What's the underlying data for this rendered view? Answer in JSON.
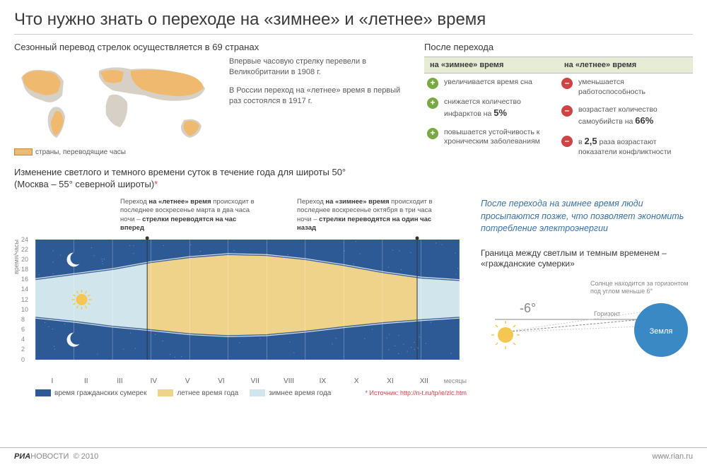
{
  "title": "Что нужно знать о переходе на «зимнее» и «летнее» время",
  "map": {
    "subtitle": "Сезонный перевод стрелок осуществляется в 69 странах",
    "legend": "страны, переводящие часы",
    "fact1": "Впервые часовую стрелку перевели в Великобритании в 1908 г.",
    "fact2": "В России переход на «летнее» время в первый раз состоялся в 1917 г.",
    "land_color": "#d6d0c6",
    "dst_color": "#f0b970"
  },
  "after": {
    "title": "После перехода",
    "winter_header": "на «зимнее» время",
    "summer_header": "на «летнее» время",
    "winter_items": [
      {
        "icon": "plus",
        "text": "увеличивается время сна"
      },
      {
        "icon": "plus",
        "text": "снижается количество инфарктов на",
        "big": "5%"
      },
      {
        "icon": "plus",
        "text": "повышается устойчивость к хроническим заболеваниям"
      }
    ],
    "summer_items": [
      {
        "icon": "minus",
        "text": "уменьшается работоспособность"
      },
      {
        "icon": "minus",
        "text": "возрастает количество самоубийств на",
        "big": "66%"
      },
      {
        "icon": "minus",
        "pre": "в",
        "big": "2,5",
        "text": "раза возрастают показатели конфликтности"
      }
    ]
  },
  "chart": {
    "title_line1": "Изменение светлого и темного времени суток в течение года для широты 50°",
    "title_line2": "(Москва – 55° северной широты)",
    "asterisk": "*",
    "note_left": "Переход <b>на «летнее» время</b> происходит в последнее воскресенье марта в два часа ночи – <b>стрелки переводятся на час вперед</b>",
    "note_right": "Переход <b>на «зимнее» время</b> происходит в последнее воскресенье октября в три часа ночи – <b>стрелки переводятся на один час назад</b>",
    "y_label": "время/часы",
    "y_ticks": [
      0,
      2,
      4,
      6,
      8,
      10,
      12,
      14,
      16,
      18,
      20,
      22,
      24
    ],
    "x_ticks": [
      "I",
      "II",
      "III",
      "IV",
      "V",
      "VI",
      "VII",
      "VIII",
      "IX",
      "X",
      "XI",
      "XII"
    ],
    "x_label": "месяцы",
    "colors": {
      "twilight": "#2d5a94",
      "summer_day": "#f0d38a",
      "winter_day": "#d0e5ec",
      "grid": "#a0a0a0"
    },
    "sunrise": [
      8.3,
      7.5,
      6.5,
      5.8,
      5.0,
      4.6,
      4.8,
      5.5,
      6.4,
      7.2,
      7.8,
      8.3
    ],
    "sunset": [
      16.2,
      17.2,
      18.2,
      19.6,
      20.6,
      21.2,
      21.0,
      20.2,
      19.0,
      17.6,
      16.5,
      16.0
    ],
    "dst_start_month": 3.9,
    "dst_end_month": 10.9,
    "legend": {
      "twilight": "время гражданских сумерек",
      "summer": "летнее время года",
      "winter": "зимнее время года",
      "source": "* Источник: http://n-t.ru/tp/ie/zlc.htm"
    }
  },
  "right": {
    "blue_note": "После перехода на зимнее время люди просыпаются позже, что позволяет экономить потребление электроэнергии",
    "twilight_title": "Граница между светлым и темным временем – «гражданские сумерки»",
    "angle": "-6°",
    "sun_caption": "Солнце находится за горизонтом под углом меньше 6°",
    "horizon": "Горизонт",
    "earth": "Земля"
  },
  "footer": {
    "brand_bold": "РИА",
    "brand_rest": "НОВОСТИ",
    "copyright": "© 2010",
    "url": "www.rian.ru"
  }
}
